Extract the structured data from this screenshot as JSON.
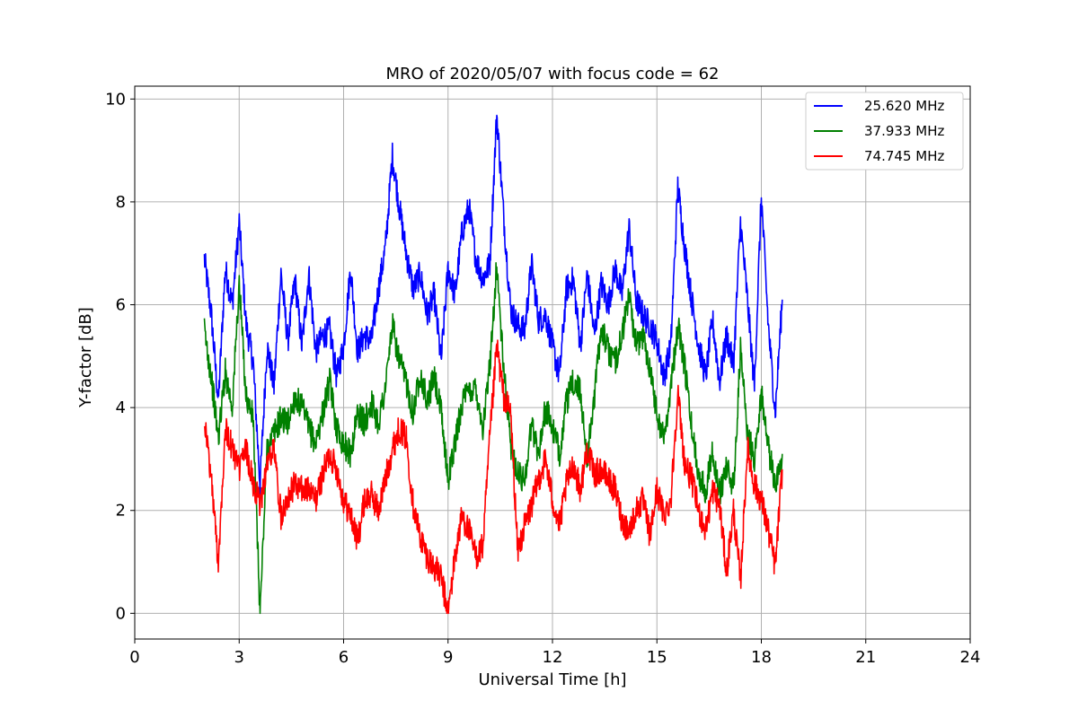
{
  "chart_data": {
    "type": "line",
    "title": "MRO of 2020/05/07 with focus code = 62",
    "xlabel": "Universal Time [h]",
    "ylabel": "Y-factor [dB]",
    "xlim": [
      0,
      24
    ],
    "ylim": [
      -0.5,
      10.25
    ],
    "xticks": [
      0,
      3,
      6,
      9,
      12,
      15,
      18,
      21,
      24
    ],
    "yticks": [
      0,
      2,
      4,
      6,
      8,
      10
    ],
    "grid": true,
    "legend_position": "top-right",
    "series": [
      {
        "name": "25.620 MHz",
        "color": "#0000ff",
        "x": [
          2.0,
          2.2,
          2.4,
          2.6,
          2.8,
          3.0,
          3.2,
          3.4,
          3.6,
          3.8,
          4.0,
          4.2,
          4.4,
          4.6,
          4.8,
          5.0,
          5.2,
          5.4,
          5.6,
          5.8,
          6.0,
          6.2,
          6.4,
          6.6,
          6.8,
          7.0,
          7.2,
          7.4,
          7.6,
          7.8,
          8.0,
          8.2,
          8.4,
          8.6,
          8.8,
          9.0,
          9.2,
          9.4,
          9.6,
          9.8,
          10.0,
          10.2,
          10.4,
          10.6,
          10.8,
          11.0,
          11.2,
          11.4,
          11.6,
          11.8,
          12.0,
          12.2,
          12.4,
          12.6,
          12.8,
          13.0,
          13.2,
          13.4,
          13.6,
          13.8,
          14.0,
          14.2,
          14.4,
          14.6,
          14.8,
          15.0,
          15.2,
          15.4,
          15.6,
          15.8,
          16.0,
          16.2,
          16.4,
          16.6,
          16.8,
          17.0,
          17.2,
          17.4,
          17.6,
          17.8,
          18.0,
          18.2,
          18.4,
          18.6
        ],
        "values": [
          6.9,
          5.8,
          4.1,
          6.7,
          6.0,
          7.6,
          5.6,
          4.9,
          2.5,
          5.2,
          4.4,
          6.6,
          5.3,
          6.5,
          5.2,
          6.6,
          5.1,
          5.4,
          5.5,
          4.6,
          5.2,
          6.7,
          5.1,
          5.4,
          5.3,
          6.3,
          7.1,
          8.9,
          7.9,
          7.0,
          6.3,
          6.6,
          5.8,
          6.2,
          4.9,
          6.7,
          6.2,
          7.4,
          7.9,
          6.9,
          6.5,
          6.8,
          9.7,
          7.7,
          5.9,
          5.6,
          5.5,
          6.8,
          5.7,
          5.8,
          5.2,
          4.6,
          6.3,
          6.5,
          5.2,
          6.6,
          5.4,
          6.4,
          6.0,
          6.7,
          6.2,
          7.5,
          6.1,
          5.8,
          5.6,
          5.3,
          4.6,
          5.2,
          8.3,
          7.1,
          6.1,
          5.2,
          4.6,
          5.7,
          4.5,
          5.4,
          4.8,
          7.6,
          6.1,
          4.4,
          8.1,
          5.6,
          3.9,
          6.1
        ]
      },
      {
        "name": "37.933 MHz",
        "color": "#008000",
        "x": [
          2.0,
          2.2,
          2.4,
          2.6,
          2.8,
          3.0,
          3.2,
          3.4,
          3.6,
          3.8,
          4.0,
          4.2,
          4.4,
          4.6,
          4.8,
          5.0,
          5.2,
          5.4,
          5.6,
          5.8,
          6.0,
          6.2,
          6.4,
          6.6,
          6.8,
          7.0,
          7.2,
          7.4,
          7.6,
          7.8,
          8.0,
          8.2,
          8.4,
          8.6,
          8.8,
          9.0,
          9.2,
          9.4,
          9.6,
          9.8,
          10.0,
          10.2,
          10.4,
          10.6,
          10.8,
          11.0,
          11.2,
          11.4,
          11.6,
          11.8,
          12.0,
          12.2,
          12.4,
          12.6,
          12.8,
          13.0,
          13.2,
          13.4,
          13.6,
          13.8,
          14.0,
          14.2,
          14.4,
          14.6,
          14.8,
          15.0,
          15.2,
          15.4,
          15.6,
          15.8,
          16.0,
          16.2,
          16.4,
          16.6,
          16.8,
          17.0,
          17.2,
          17.4,
          17.6,
          17.8,
          18.0,
          18.2,
          18.4,
          18.6
        ],
        "values": [
          5.5,
          4.6,
          3.4,
          4.7,
          4.0,
          6.4,
          4.2,
          3.8,
          0.0,
          3.2,
          3.5,
          3.8,
          3.7,
          4.2,
          4.0,
          3.6,
          3.3,
          3.9,
          4.5,
          3.6,
          3.3,
          3.1,
          3.9,
          3.7,
          4.1,
          3.7,
          4.4,
          5.6,
          4.9,
          4.5,
          3.9,
          4.7,
          4.1,
          4.6,
          3.9,
          2.6,
          3.3,
          4.1,
          4.3,
          4.4,
          3.6,
          4.8,
          6.8,
          4.7,
          3.3,
          2.7,
          2.6,
          3.7,
          3.1,
          4.0,
          3.6,
          3.1,
          4.1,
          4.5,
          4.3,
          3.0,
          4.2,
          5.6,
          5.1,
          4.9,
          5.4,
          6.2,
          5.2,
          5.4,
          4.8,
          3.9,
          3.4,
          4.4,
          5.6,
          4.8,
          3.6,
          2.7,
          2.4,
          3.2,
          2.3,
          2.9,
          2.4,
          5.1,
          3.5,
          3.0,
          4.3,
          3.2,
          2.5,
          3.1
        ]
      },
      {
        "name": "74.745 MHz",
        "color": "#ff0000",
        "x": [
          2.0,
          2.2,
          2.4,
          2.6,
          2.8,
          3.0,
          3.2,
          3.4,
          3.6,
          3.8,
          4.0,
          4.2,
          4.4,
          4.6,
          4.8,
          5.0,
          5.2,
          5.4,
          5.6,
          5.8,
          6.0,
          6.2,
          6.4,
          6.6,
          6.8,
          7.0,
          7.2,
          7.4,
          7.6,
          7.8,
          8.0,
          8.2,
          8.4,
          8.6,
          8.8,
          9.0,
          9.2,
          9.4,
          9.6,
          9.8,
          10.0,
          10.2,
          10.4,
          10.6,
          10.8,
          11.0,
          11.2,
          11.4,
          11.6,
          11.8,
          12.0,
          12.2,
          12.4,
          12.6,
          12.8,
          13.0,
          13.2,
          13.4,
          13.6,
          13.8,
          14.0,
          14.2,
          14.4,
          14.6,
          14.8,
          15.0,
          15.2,
          15.4,
          15.6,
          15.8,
          16.0,
          16.2,
          16.4,
          16.6,
          16.8,
          17.0,
          17.2,
          17.4,
          17.6,
          17.8,
          18.0,
          18.2,
          18.4,
          18.6
        ],
        "values": [
          3.8,
          2.6,
          1.0,
          3.6,
          3.2,
          2.8,
          3.2,
          2.5,
          2.1,
          2.9,
          3.2,
          1.9,
          2.3,
          2.5,
          2.4,
          2.4,
          2.2,
          2.7,
          3.1,
          2.8,
          2.2,
          1.9,
          1.4,
          2.2,
          2.3,
          2.0,
          2.6,
          3.2,
          3.6,
          3.4,
          2.1,
          1.5,
          1.1,
          0.9,
          0.7,
          0.0,
          1.1,
          1.9,
          1.6,
          1.1,
          1.3,
          3.4,
          5.2,
          4.2,
          3.9,
          1.2,
          1.7,
          2.1,
          2.6,
          3.0,
          2.2,
          1.7,
          2.5,
          2.9,
          2.4,
          3.2,
          2.7,
          2.8,
          2.6,
          2.4,
          1.8,
          1.6,
          2.0,
          2.2,
          1.5,
          2.4,
          1.9,
          2.2,
          4.3,
          2.9,
          2.6,
          2.0,
          1.6,
          2.4,
          2.1,
          0.8,
          2.0,
          0.6,
          3.2,
          2.5,
          2.2,
          1.6,
          0.9,
          2.8
        ]
      }
    ]
  }
}
